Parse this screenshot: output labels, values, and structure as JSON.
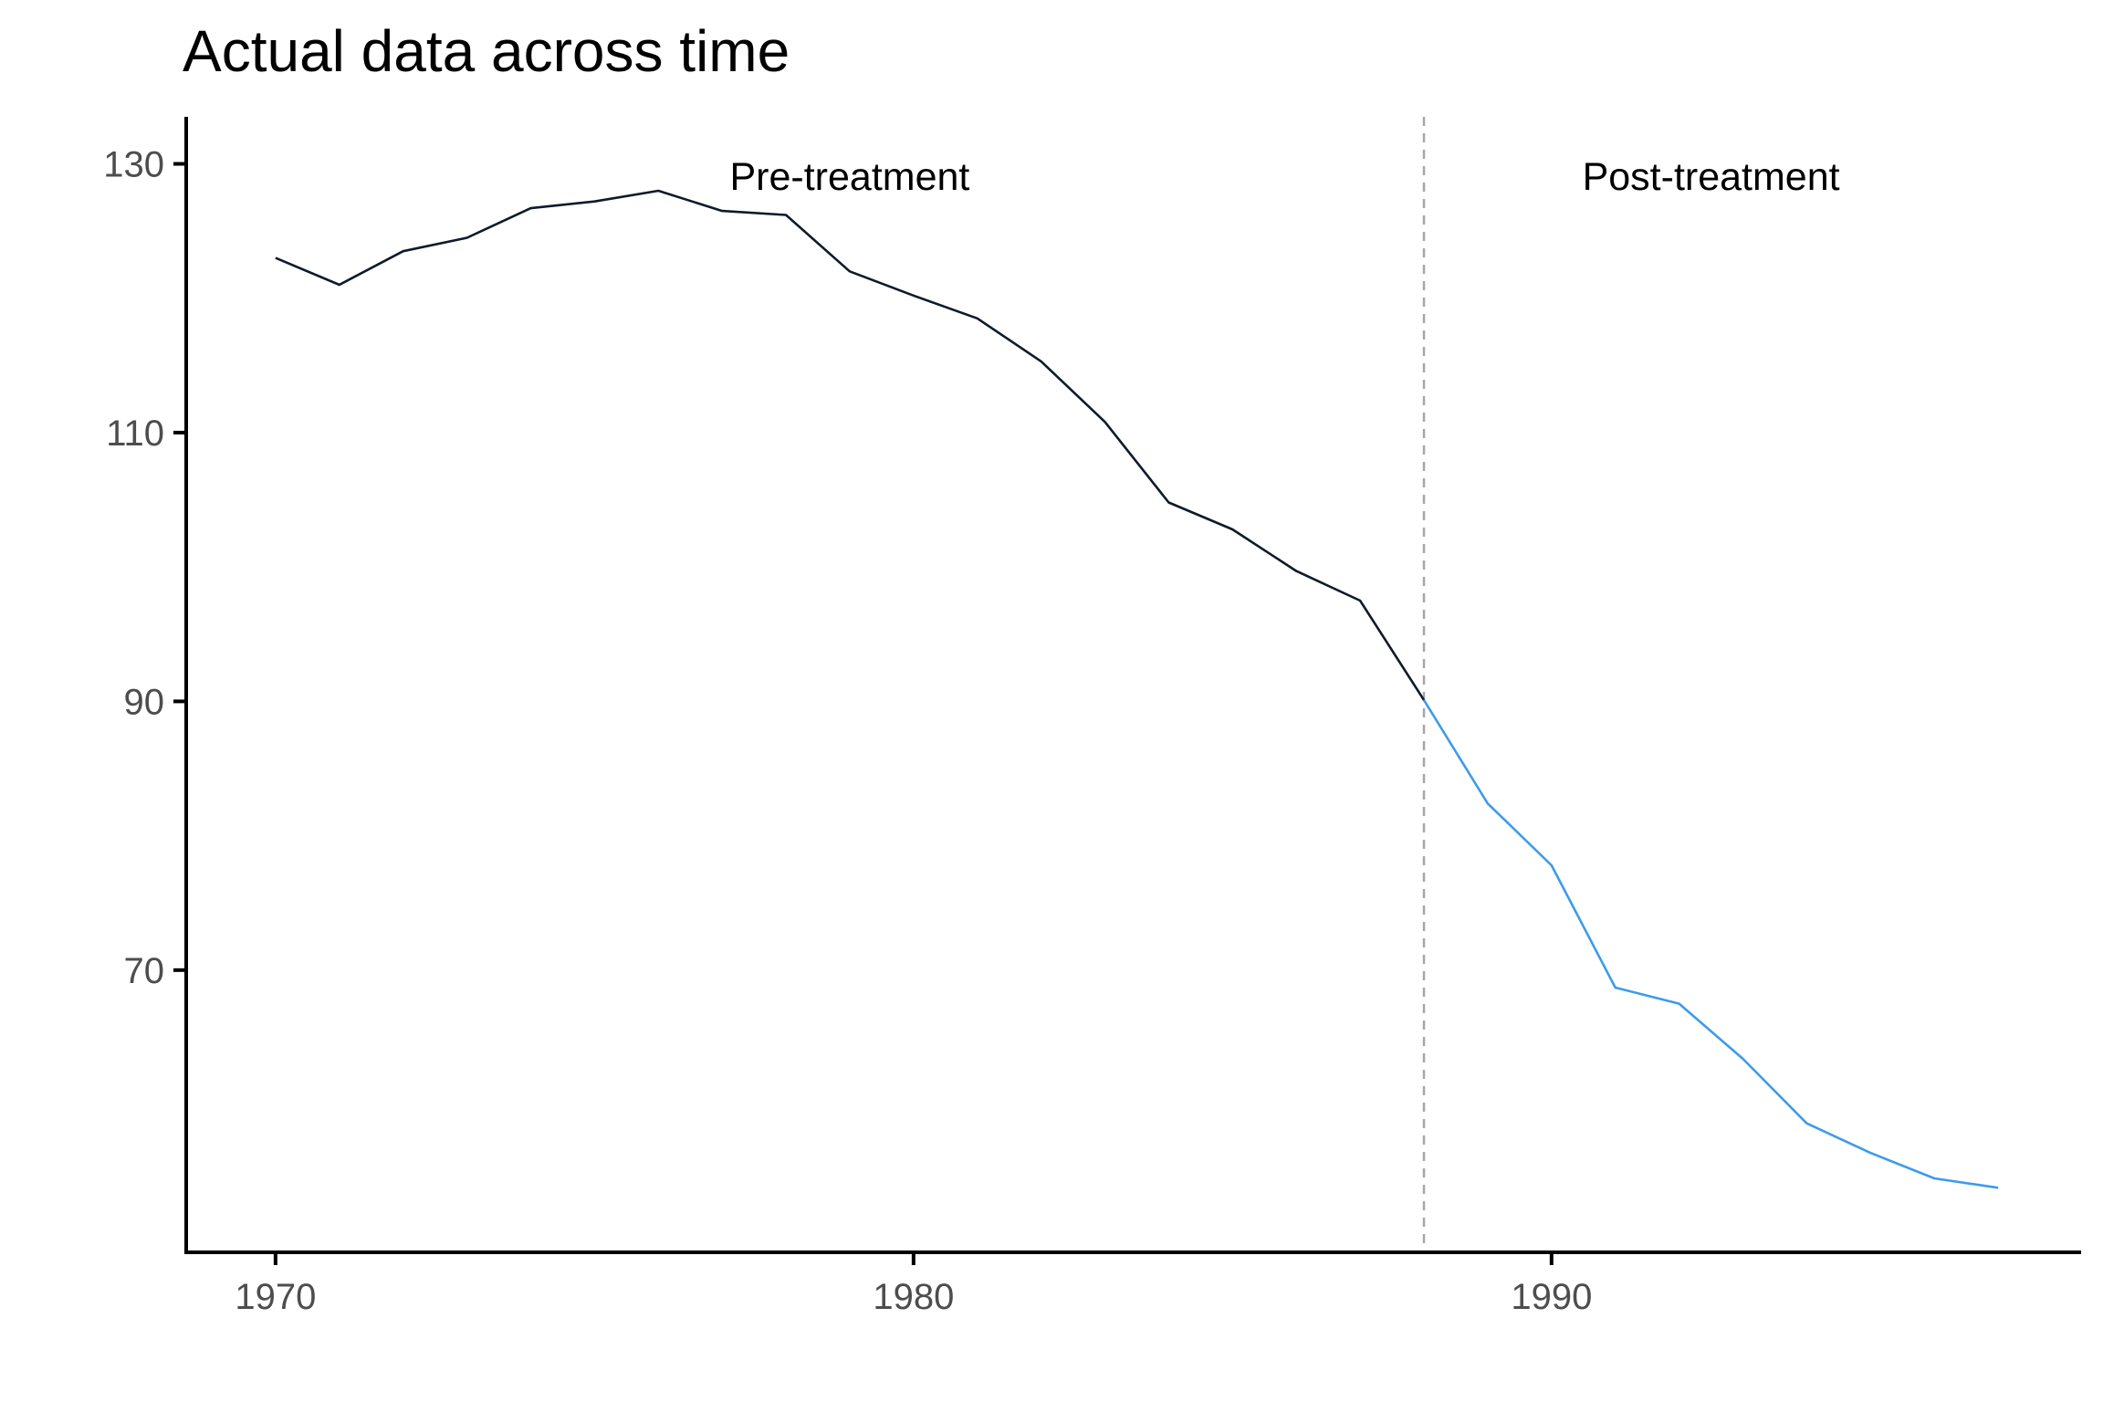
{
  "chart_data": {
    "type": "line",
    "title": "Actual data across time",
    "xlabel": "",
    "ylabel": "",
    "xlim": [
      1968.6,
      1998.3
    ],
    "ylim": [
      49,
      133.5
    ],
    "x_ticks": [
      1970,
      1980,
      1990
    ],
    "x_tick_labels": [
      "1970",
      "1980",
      "1990"
    ],
    "y_ticks": [
      70,
      90,
      110,
      130
    ],
    "y_tick_labels": [
      "70",
      "90",
      "110",
      "130"
    ],
    "grid": false,
    "legend": "none",
    "treatment_year": 1988,
    "annotations": [
      {
        "text": "Pre-treatment",
        "x": 1979,
        "y": 129
      },
      {
        "text": "Post-treatment",
        "x": 1992.5,
        "y": 129
      }
    ],
    "series": [
      {
        "color": "#0d1b2a",
        "x": [
          1970,
          1971,
          1972,
          1973,
          1974,
          1975,
          1976,
          1977,
          1978,
          1979,
          1980,
          1981,
          1982,
          1983,
          1984,
          1985,
          1986,
          1987,
          1988
        ],
        "y": [
          123,
          121,
          123.5,
          124.5,
          126.7,
          127.2,
          128,
          126.5,
          126.2,
          122,
          120.2,
          118.5,
          115.3,
          110.8,
          104.8,
          102.8,
          99.7,
          97.5,
          90.1
        ]
      },
      {
        "color": "#3d9be9",
        "x": [
          1988,
          1989,
          1990,
          1991,
          1992,
          1993,
          1994,
          1995,
          1996,
          1997
        ],
        "y": [
          90.1,
          82.4,
          77.8,
          68.7,
          67.5,
          63.4,
          58.6,
          56.4,
          54.5,
          53.8
        ]
      }
    ]
  }
}
